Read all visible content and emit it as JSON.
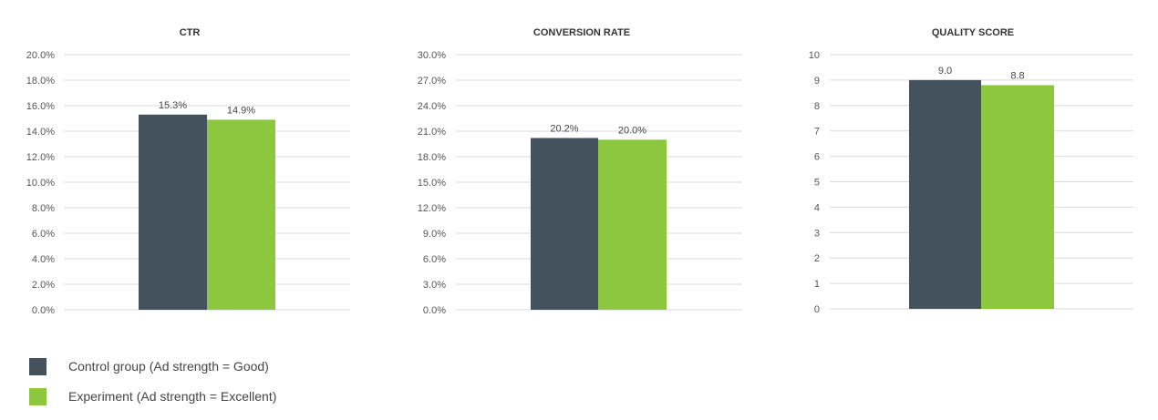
{
  "colors": {
    "control": "#43525c",
    "experiment": "#8dc63f",
    "grid": "#d9d9d9",
    "axis_text": "#555555",
    "title_text": "#333333"
  },
  "legend": [
    {
      "label": "Control group (Ad strength = Good)",
      "color": "#43525c"
    },
    {
      "label": "Experiment (Ad strength = Excellent)",
      "color": "#8dc63f"
    }
  ],
  "chart_data": [
    {
      "type": "bar",
      "title": "CTR",
      "ylim": [
        0,
        20
      ],
      "ticks": [
        "0.0%",
        "2.0%",
        "4.0%",
        "6.0%",
        "8.0%",
        "10.0%",
        "12.0%",
        "14.0%",
        "16.0%",
        "18.0%",
        "20.0%"
      ],
      "tick_values": [
        0,
        2,
        4,
        6,
        8,
        10,
        12,
        14,
        16,
        18,
        20
      ],
      "grid": true,
      "series": [
        {
          "values": [
            15.3
          ],
          "labels": [
            "15.3%"
          ]
        },
        {
          "values": [
            14.9
          ],
          "labels": [
            "14.9%"
          ]
        }
      ]
    },
    {
      "type": "bar",
      "title": "CONVERSION RATE",
      "ylim": [
        0,
        30
      ],
      "ticks": [
        "0.0%",
        "3.0%",
        "6.0%",
        "9.0%",
        "12.0%",
        "15.0%",
        "18.0%",
        "21.0%",
        "24.0%",
        "27.0%",
        "30.0%"
      ],
      "tick_values": [
        0,
        3,
        6,
        9,
        12,
        15,
        18,
        21,
        24,
        27,
        30
      ],
      "grid": true,
      "series": [
        {
          "values": [
            20.2
          ],
          "labels": [
            "20.2%"
          ]
        },
        {
          "values": [
            20.0
          ],
          "labels": [
            "20.0%"
          ]
        }
      ]
    },
    {
      "type": "bar",
      "title": "QUALITY SCORE",
      "ylim": [
        0,
        10
      ],
      "ticks": [
        "0",
        "1",
        "2",
        "3",
        "4",
        "5",
        "6",
        "7",
        "8",
        "9",
        "10"
      ],
      "tick_values": [
        0,
        1,
        2,
        3,
        4,
        5,
        6,
        7,
        8,
        9,
        10
      ],
      "grid": true,
      "series": [
        {
          "values": [
            9.0
          ],
          "labels": [
            "9.0"
          ]
        },
        {
          "values": [
            8.8
          ],
          "labels": [
            "8.8"
          ]
        }
      ]
    }
  ]
}
